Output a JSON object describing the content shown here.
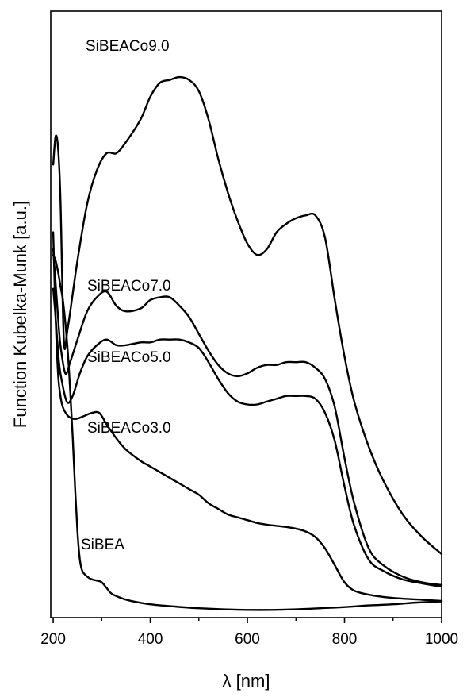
{
  "chart_data": {
    "type": "line",
    "xlabel": "λ [nm]",
    "ylabel": "Function Kubelka-Munk [a.u.]",
    "xlim": [
      195,
      1000
    ],
    "ylim": [
      0,
      1.0
    ],
    "x_ticks": [
      200,
      400,
      600,
      800,
      1000
    ],
    "y_ticks": [],
    "grid": false,
    "legend": "none (series labeled directly on plot)",
    "series": [
      {
        "name": "SiBEACo9.0",
        "x": [
          200,
          205,
          210,
          215,
          222,
          230,
          250,
          270,
          290,
          310,
          330,
          350,
          380,
          400,
          420,
          440,
          460,
          480,
          500,
          520,
          540,
          560,
          580,
          600,
          620,
          640,
          660,
          680,
          700,
          720,
          740,
          760,
          780,
          800,
          820,
          850,
          880,
          920,
          960,
          1000
        ],
        "values": [
          0.79,
          0.84,
          0.82,
          0.73,
          0.48,
          0.5,
          0.62,
          0.72,
          0.78,
          0.81,
          0.81,
          0.83,
          0.87,
          0.91,
          0.935,
          0.94,
          0.945,
          0.94,
          0.92,
          0.87,
          0.8,
          0.74,
          0.69,
          0.65,
          0.63,
          0.64,
          0.67,
          0.685,
          0.695,
          0.7,
          0.7,
          0.66,
          0.55,
          0.45,
          0.37,
          0.29,
          0.23,
          0.17,
          0.13,
          0.1
        ]
      },
      {
        "name": "SiBEACo7.0",
        "x": [
          200,
          205,
          210,
          215,
          225,
          235,
          250,
          270,
          290,
          310,
          330,
          350,
          380,
          400,
          420,
          440,
          460,
          480,
          500,
          520,
          540,
          560,
          580,
          600,
          620,
          640,
          660,
          680,
          700,
          720,
          740,
          760,
          780,
          800,
          820,
          850,
          880,
          920,
          960,
          1000
        ],
        "values": [
          0.64,
          0.58,
          0.52,
          0.47,
          0.42,
          0.44,
          0.48,
          0.53,
          0.555,
          0.565,
          0.54,
          0.53,
          0.535,
          0.55,
          0.555,
          0.555,
          0.54,
          0.52,
          0.49,
          0.46,
          0.435,
          0.42,
          0.415,
          0.42,
          0.43,
          0.435,
          0.435,
          0.44,
          0.44,
          0.44,
          0.43,
          0.41,
          0.36,
          0.27,
          0.19,
          0.11,
          0.08,
          0.06,
          0.05,
          0.045
        ]
      },
      {
        "name": "SiBEACo5.0",
        "x": [
          200,
          205,
          210,
          215,
          228,
          240,
          255,
          270,
          290,
          310,
          330,
          350,
          380,
          400,
          420,
          440,
          460,
          480,
          500,
          520,
          540,
          560,
          580,
          600,
          620,
          640,
          660,
          680,
          700,
          720,
          740,
          760,
          780,
          800,
          820,
          850,
          880,
          920,
          960,
          1000
        ],
        "values": [
          0.57,
          0.52,
          0.46,
          0.42,
          0.37,
          0.38,
          0.42,
          0.45,
          0.47,
          0.48,
          0.47,
          0.47,
          0.475,
          0.475,
          0.48,
          0.48,
          0.48,
          0.475,
          0.465,
          0.44,
          0.41,
          0.385,
          0.37,
          0.365,
          0.365,
          0.37,
          0.375,
          0.38,
          0.38,
          0.38,
          0.375,
          0.35,
          0.3,
          0.22,
          0.15,
          0.09,
          0.07,
          0.055,
          0.048,
          0.042
        ]
      },
      {
        "name": "SiBEACo3.0",
        "x": [
          200,
          205,
          210,
          215,
          220,
          230,
          240,
          250,
          265,
          280,
          295,
          310,
          330,
          350,
          380,
          400,
          420,
          440,
          460,
          480,
          500,
          520,
          540,
          560,
          580,
          600,
          620,
          640,
          660,
          680,
          700,
          720,
          740,
          760,
          780,
          800,
          820,
          850,
          880,
          920,
          960,
          1000
        ],
        "values": [
          0.67,
          0.52,
          0.42,
          0.38,
          0.36,
          0.345,
          0.34,
          0.34,
          0.345,
          0.35,
          0.35,
          0.33,
          0.305,
          0.285,
          0.265,
          0.255,
          0.245,
          0.235,
          0.225,
          0.215,
          0.205,
          0.19,
          0.18,
          0.17,
          0.165,
          0.16,
          0.155,
          0.152,
          0.15,
          0.148,
          0.145,
          0.14,
          0.13,
          0.11,
          0.08,
          0.05,
          0.035,
          0.028,
          0.024,
          0.021,
          0.019,
          0.017
        ]
      },
      {
        "name": "SiBEA",
        "x": [
          200,
          205,
          210,
          215,
          220,
          225,
          230,
          235,
          240,
          245,
          250,
          255,
          260,
          270,
          280,
          290,
          300,
          310,
          320,
          340,
          360,
          400,
          450,
          500,
          550,
          600,
          650,
          700,
          750,
          800,
          850,
          900,
          950,
          1000
        ],
        "values": [
          0.63,
          0.62,
          0.6,
          0.575,
          0.55,
          0.51,
          0.46,
          0.39,
          0.31,
          0.22,
          0.14,
          0.09,
          0.07,
          0.06,
          0.055,
          0.053,
          0.05,
          0.04,
          0.03,
          0.022,
          0.017,
          0.011,
          0.007,
          0.004,
          0.002,
          0.001,
          0.001,
          0.002,
          0.004,
          0.006,
          0.009,
          0.011,
          0.014,
          0.016
        ]
      }
    ],
    "annotations": [
      {
        "text": "SiBEACo9.0",
        "series": "SiBEACo9.0"
      },
      {
        "text": "SiBEACo7.0",
        "series": "SiBEACo7.0"
      },
      {
        "text": "SiBEACo5.0",
        "series": "SiBEACo5.0"
      },
      {
        "text": "SiBEACo3.0",
        "series": "SiBEACo3.0"
      },
      {
        "text": "SiBEA",
        "series": "SiBEA"
      }
    ]
  }
}
